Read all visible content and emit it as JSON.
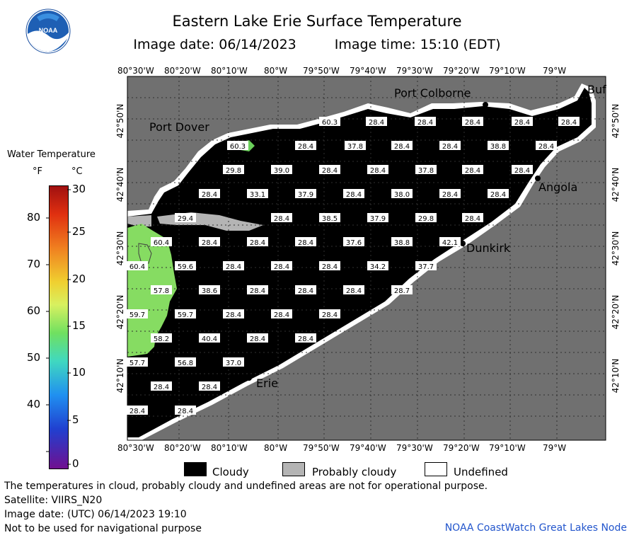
{
  "header": {
    "title": "Eastern Lake Erie Surface Temperature",
    "image_date": "Image date: 06/14/2023",
    "image_time": "Image time: 15:10 (EDT)",
    "logo_text": "NOAA"
  },
  "axes": {
    "lon_labels": [
      "80°30'W",
      "80°20'W",
      "80°10'W",
      "80°W",
      "79°50'W",
      "79°40'W",
      "79°30'W",
      "79°20'W",
      "79°10'W",
      "79°W"
    ],
    "lat_labels": [
      "42°50'N",
      "42°40'N",
      "42°30'N",
      "42°20'N",
      "42°10'N"
    ]
  },
  "legend": {
    "title": "Water Temperature",
    "unit_f": "°F",
    "unit_c": "°C",
    "f_ticks": [
      "80",
      "70",
      "60",
      "50",
      "40"
    ],
    "c_ticks": [
      "30",
      "25",
      "20",
      "15",
      "10",
      "5",
      "0"
    ]
  },
  "places": {
    "port_colborne": "Port Colborne",
    "port_dover": "Port Dover",
    "angola": "Angola",
    "dunkirk": "Dunkirk",
    "erie": "Erie",
    "buffalo": "Buf"
  },
  "temperature_labels": [
    "60.3",
    "28.4",
    "28.4",
    "28.4",
    "28.4",
    "28.4",
    "60.3",
    "28.4",
    "37.8",
    "28.4",
    "28.4",
    "38.8",
    "28.4",
    "29.8",
    "39.0",
    "28.4",
    "28.4",
    "37.8",
    "28.4",
    "28.4",
    "28.4",
    "33.1",
    "37.9",
    "28.4",
    "38.0",
    "28.4",
    "28.4",
    "29.4",
    "28.4",
    "38.5",
    "37.9",
    "29.8",
    "28.4",
    "60.4",
    "28.4",
    "28.4",
    "28.4",
    "37.6",
    "38.8",
    "42.1",
    "60.4",
    "59.6",
    "28.4",
    "28.4",
    "28.4",
    "34.2",
    "37.7",
    "57.8",
    "38.6",
    "28.4",
    "28.4",
    "28.4",
    "28.7",
    "59.7",
    "59.7",
    "28.4",
    "28.4",
    "28.4",
    "58.2",
    "40.4",
    "28.4",
    "28.4",
    "57.7",
    "56.8",
    "37.0",
    "28.4",
    "28.4",
    "28.4",
    "28.4"
  ],
  "key": {
    "cloudy": "Cloudy",
    "probably_cloudy": "Probably cloudy",
    "undefined": "Undefined"
  },
  "footer": {
    "disclaimer": "The temperatures in cloud, probably cloudy and undefined areas are not for operational purpose.",
    "satellite": "Satellite: VIIRS_N20",
    "utc_date": "Image date: (UTC) 06/14/2023  19:10",
    "nav": "Not to be used for navigational purpose",
    "credit": "NOAA CoastWatch Great Lakes Node"
  },
  "colors": {
    "land": "#707070",
    "cloud": "#000000",
    "probably_cloudy": "#b4b4b4",
    "undefined": "#ffffff",
    "grid": "#303030"
  }
}
